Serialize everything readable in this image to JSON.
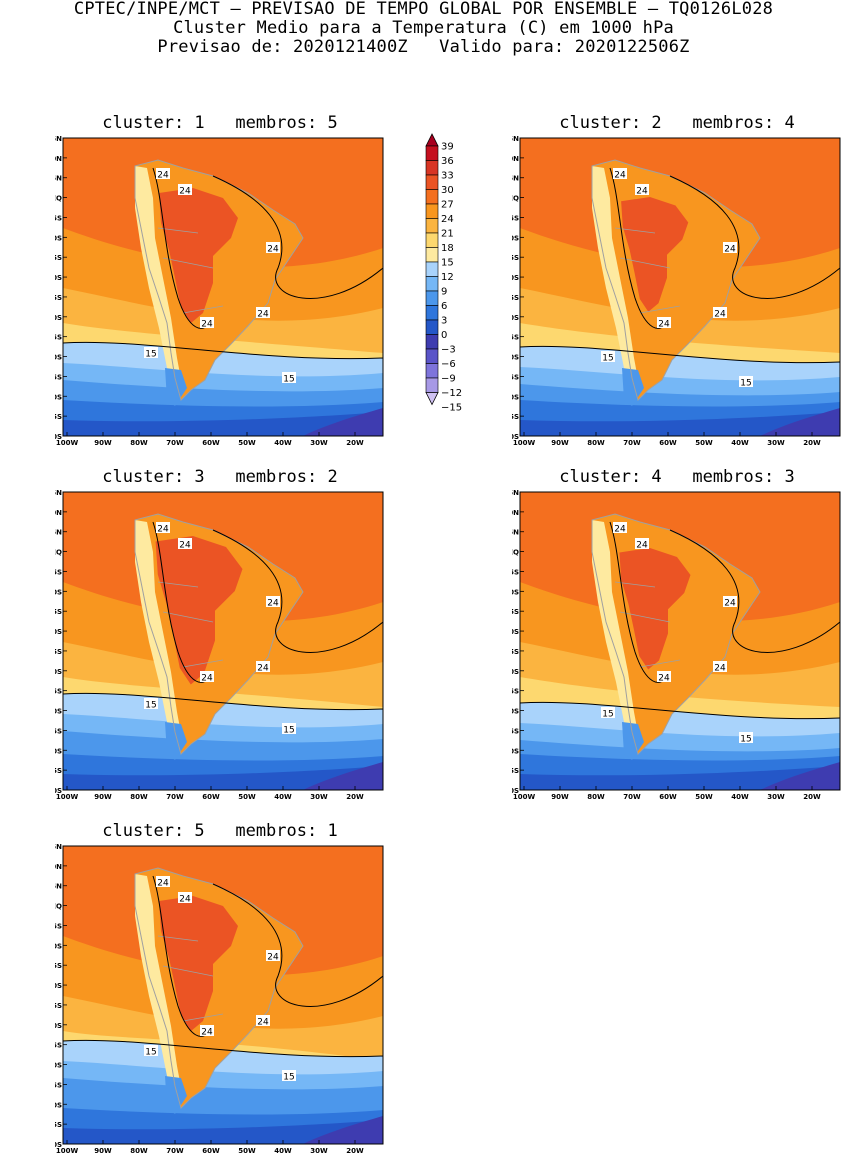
{
  "header": {
    "line1": "CPTEC/INPE/MCT – PREVISAO DE TEMPO GLOBAL POR ENSEMBLE – TQ0126L028",
    "line2": "Cluster Medio para a Temperatura (C) em 1000 hPa",
    "line3": "Previsao de: 2020121400Z   Valido para: 2020122506Z"
  },
  "axes": {
    "lat_labels": [
      "15N",
      "10N",
      "5N",
      "EQ",
      "5S",
      "10S",
      "15S",
      "20S",
      "25S",
      "30S",
      "35S",
      "40S",
      "45S",
      "50S",
      "55S",
      "60S"
    ],
    "lon_labels": [
      "100W",
      "90W",
      "80W",
      "70W",
      "60W",
      "50W",
      "40W",
      "30W",
      "20W"
    ]
  },
  "colorbar": {
    "levels": [
      "39",
      "36",
      "33",
      "30",
      "27",
      "24",
      "21",
      "18",
      "15",
      "12",
      "9",
      "6",
      "3",
      "0",
      "−3",
      "−6",
      "−9",
      "−12",
      "−15"
    ],
    "colors": [
      "#a8001f",
      "#c5101f",
      "#d83524",
      "#eb5424",
      "#f46f1f",
      "#f8961f",
      "#fbb440",
      "#fdd86f",
      "#feeaa0",
      "#a9d3fb",
      "#75b7f6",
      "#4c97eb",
      "#2f76dc",
      "#2457c8",
      "#3e3cb0",
      "#5a54c8",
      "#7e74db",
      "#a799e6",
      "#cfc1f2"
    ]
  },
  "palette": {
    "ocean_tropical": "#f46f1f",
    "ocean_warm": "#f8961f",
    "ocean_mid": "#fbb440",
    "ocean_cool": "#fdd86f",
    "ocean_light": "#feeaa0",
    "southern_1": "#a9d3fb",
    "southern_2": "#75b7f6",
    "southern_3": "#4c97eb",
    "southern_4": "#2f76dc",
    "southern_5": "#2457c8",
    "southern_6": "#3e3cb0",
    "interior_hot": "#eb5424",
    "andes": "#feeaa0",
    "border_gray": "#a0a0a0",
    "contour": "#000000"
  },
  "panels": [
    {
      "title": "cluster: 1   membros: 5",
      "labels": [
        "24",
        "24",
        "24",
        "24",
        "24",
        "15",
        "15"
      ]
    },
    {
      "title": "cluster: 2   membros: 4",
      "labels": [
        "24",
        "24",
        "24",
        "24",
        "24",
        "15",
        "15"
      ]
    },
    {
      "title": "cluster: 3   membros: 2",
      "labels": [
        "24",
        "24",
        "24",
        "24",
        "24",
        "15",
        "15"
      ]
    },
    {
      "title": "cluster: 4   membros: 3",
      "labels": [
        "24",
        "24",
        "24",
        "24",
        "24",
        "15",
        "15"
      ]
    },
    {
      "title": "cluster: 5   membros: 1",
      "labels": [
        "24",
        "24",
        "24",
        "24",
        "24",
        "15",
        "15"
      ]
    }
  ]
}
